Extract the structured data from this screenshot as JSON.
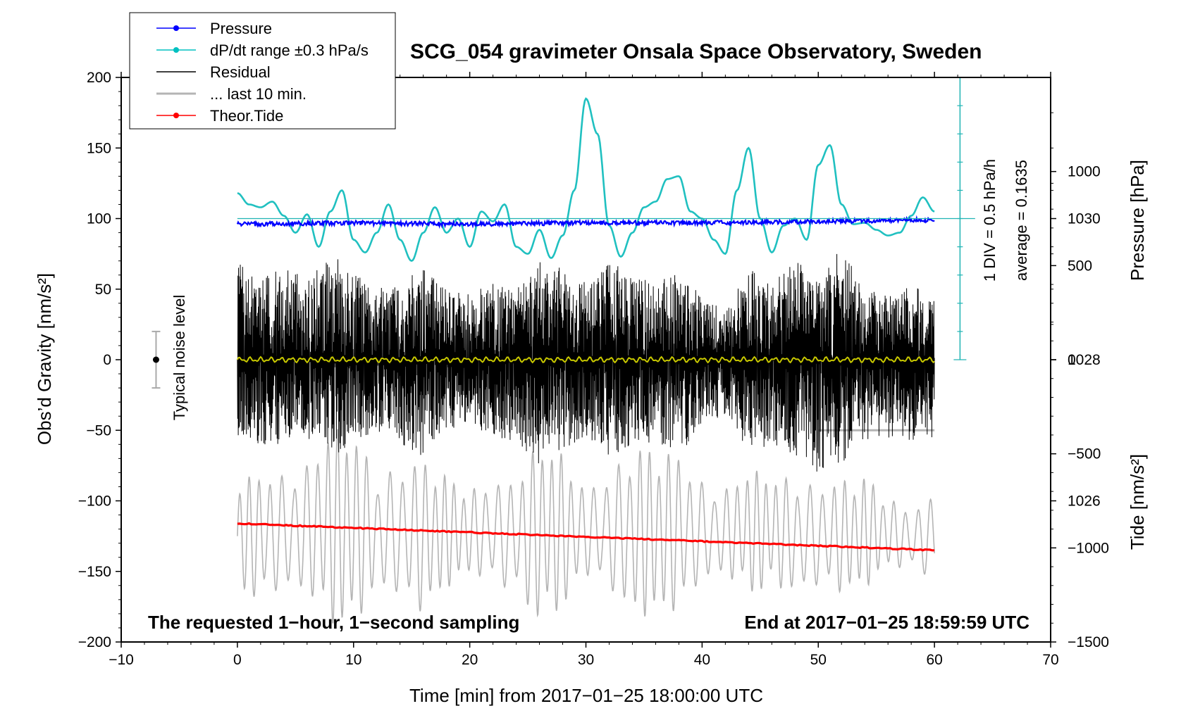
{
  "chart_data": {
    "type": "line",
    "title": "SCG_054 gravimeter Onsala Space Observatory, Sweden",
    "xlabel": "Time [min] from 2017−01−25 18:00:00 UTC",
    "ylabel_left": "Obs’d Gravity [nm/s²]",
    "ylabel_right_top": "Pressure [hPa]",
    "ylabel_right_bottom": "Tide [nm/s²]",
    "xlim": [
      -10,
      70
    ],
    "ylim_left": [
      -200,
      200
    ],
    "pressure_range_hpa": [
      1024,
      1032
    ],
    "tide_range": [
      -1500,
      1500
    ],
    "x_ticks": [
      "−10",
      "0",
      "10",
      "20",
      "30",
      "40",
      "50",
      "60",
      "70"
    ],
    "y_ticks_left": [
      "200",
      "150",
      "100",
      "50",
      "0",
      "−50",
      "−100",
      "−150",
      "−200"
    ],
    "pressure_ticks": [
      "1030",
      "1028",
      "1026"
    ],
    "tide_ticks": [
      "1000",
      "500",
      "0",
      "−500",
      "−1000",
      "−1500"
    ],
    "annotation_left": "The requested 1−hour, 1−second sampling",
    "annotation_right": "End at 2017−01−25 18:59:59 UTC",
    "noise_label": "Typical noise level",
    "noise_level": {
      "x": -7,
      "center": 0,
      "low": -20,
      "high": 20
    },
    "scale_bar": {
      "text_1": "1 DIV = 0.5 hPa/h",
      "text_2": "average = 0.1635",
      "top": 200,
      "bottom": 0
    },
    "legend": {
      "placement": "top-left",
      "items": [
        {
          "label": "Pressure",
          "color": "#0000ff",
          "marker": true
        },
        {
          "label": "dP/dt range ±0.3 hPa/s",
          "color": "#00c0c0",
          "marker": true
        },
        {
          "label": "Residual",
          "color": "#000000",
          "marker": false
        },
        {
          "label": "... last 10 min.",
          "color": "#b4b4b4",
          "marker": false
        },
        {
          "label": "Theor.Tide",
          "color": "#ff0000",
          "marker": true
        }
      ]
    },
    "series": [
      {
        "name": "dP/dt",
        "color": "#20c0c0",
        "x": [
          0,
          1,
          2,
          3,
          4,
          5,
          6,
          7,
          8,
          9,
          10,
          11,
          12,
          13,
          14,
          15,
          16,
          17,
          18,
          19,
          20,
          21,
          22,
          23,
          24,
          25,
          26,
          27,
          28,
          29,
          30,
          31,
          32,
          33,
          34,
          35,
          36,
          37,
          38,
          39,
          40,
          41,
          42,
          43,
          44,
          45,
          46,
          47,
          48,
          49,
          50,
          51,
          52,
          53,
          54,
          55,
          56,
          57,
          58,
          59,
          60
        ],
        "y": [
          118,
          110,
          108,
          112,
          102,
          90,
          103,
          80,
          105,
          120,
          85,
          76,
          90,
          110,
          85,
          70,
          90,
          108,
          90,
          100,
          80,
          105,
          98,
          110,
          80,
          75,
          92,
          72,
          88,
          120,
          185,
          160,
          95,
          73,
          90,
          108,
          112,
          128,
          130,
          105,
          100,
          85,
          75,
          120,
          150,
          100,
          76,
          95,
          100,
          85,
          138,
          152,
          110,
          96,
          97,
          92,
          88,
          90,
          102,
          115,
          105
        ]
      },
      {
        "name": "Pressure",
        "color": "#0000ff",
        "x": [
          0,
          10,
          20,
          30,
          40,
          50,
          60
        ],
        "y": [
          96,
          97,
          96,
          97,
          97,
          98,
          99
        ]
      },
      {
        "name": "Residual envelope",
        "color": "#000000",
        "x": [
          0,
          2,
          4,
          6,
          8,
          10,
          12,
          14,
          16,
          18,
          20,
          22,
          24,
          26,
          28,
          30,
          32,
          34,
          36,
          38,
          40,
          42,
          44,
          46,
          48,
          50,
          52,
          54,
          56,
          58,
          60
        ],
        "upper": [
          70,
          55,
          70,
          55,
          75,
          65,
          50,
          55,
          65,
          50,
          48,
          55,
          50,
          72,
          65,
          55,
          70,
          60,
          55,
          65,
          45,
          35,
          65,
          55,
          70,
          60,
          80,
          50,
          45,
          55,
          45
        ],
        "lower": [
          -55,
          -60,
          -60,
          -55,
          -70,
          -60,
          -50,
          -60,
          -70,
          -50,
          -45,
          -55,
          -60,
          -75,
          -65,
          -55,
          -70,
          -60,
          -60,
          -70,
          -45,
          -40,
          -65,
          -60,
          -70,
          -80,
          -75,
          -60,
          -55,
          -60,
          -55
        ]
      },
      {
        "name": "Residual smoothed",
        "color": "#c8c800",
        "x": [
          0,
          60
        ],
        "y": [
          0,
          0
        ]
      },
      {
        "name": "... last 10 min.",
        "color": "#b4b4b4",
        "x": [
          0,
          2,
          4,
          6,
          8,
          10,
          12,
          14,
          16,
          18,
          20,
          22,
          24,
          26,
          28,
          30,
          32,
          34,
          36,
          38,
          40,
          42,
          44,
          46,
          48,
          50,
          52,
          54,
          56,
          58,
          60
        ],
        "center": [
          -125,
          -125,
          -122,
          -120,
          -118,
          -120,
          -122,
          -122,
          -125,
          -122,
          -122,
          -122,
          -125,
          -122,
          -122,
          -122,
          -122,
          -122,
          -122,
          -122,
          -122,
          -122,
          -122,
          -122,
          -125,
          -125,
          -125,
          -122,
          -122,
          -128,
          -125
        ],
        "amplitude": [
          40,
          45,
          40,
          45,
          70,
          70,
          40,
          45,
          55,
          40,
          30,
          35,
          40,
          65,
          55,
          30,
          40,
          60,
          60,
          55,
          35,
          30,
          45,
          40,
          40,
          35,
          40,
          40,
          25,
          20,
          30
        ]
      },
      {
        "name": "Theor.Tide",
        "color": "#ff0000",
        "x": [
          0,
          60
        ],
        "y": [
          -116,
          -135
        ]
      }
    ],
    "last10_flat_segment": {
      "x": [
        50,
        60
      ],
      "y": -50
    }
  }
}
